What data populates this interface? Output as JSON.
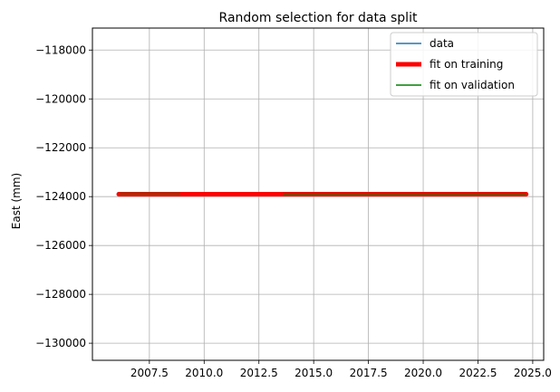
{
  "chart_data": {
    "type": "line",
    "title": "Random selection for data split",
    "xlabel": "",
    "ylabel": "East (mm)",
    "xlim": [
      2004.9,
      2025.5
    ],
    "ylim": [
      -130700,
      -117100
    ],
    "xticks": [
      2007.5,
      2010.0,
      2012.5,
      2015.0,
      2017.5,
      2020.0,
      2022.5,
      2025.0
    ],
    "xtick_labels": [
      "2007.5",
      "2010.0",
      "2012.5",
      "2015.0",
      "2017.5",
      "2020.0",
      "2022.5",
      "2025.0"
    ],
    "yticks": [
      -118000,
      -120000,
      -122000,
      -124000,
      -126000,
      -128000,
      -130000
    ],
    "ytick_labels": [
      "−118000",
      "−120000",
      "−122000",
      "−124000",
      "−126000",
      "−128000",
      "−130000"
    ],
    "grid": true,
    "legend_position": "top-right",
    "series": [
      {
        "name": "data",
        "color": "#1f77b4",
        "style": "line",
        "x": [
          2006.1,
          2007.0,
          2008.0,
          2009.0,
          2010.0,
          2011.0,
          2012.0,
          2013.0,
          2014.0,
          2015.0,
          2016.0,
          2017.0,
          2018.0,
          2019.0,
          2020.0,
          2021.0,
          2022.0,
          2023.0,
          2024.0,
          2024.7
        ],
        "y": [
          -123880,
          -123900,
          -123890,
          -123910,
          -123900,
          -123905,
          -123895,
          -123900,
          -123890,
          -123900,
          -123905,
          -123895,
          -123900,
          -123910,
          -123895,
          -123900,
          -123905,
          -123895,
          -123900,
          -123900
        ]
      },
      {
        "name": "fit on training",
        "color": "#ff0000",
        "style": "thick-line",
        "x": [
          2006.1,
          2024.7
        ],
        "y": [
          -123900,
          -123900
        ]
      },
      {
        "name": "fit on validation",
        "color": "#008000",
        "style": "line-segments",
        "segments": [
          {
            "x": [
              2006.1,
              2008.9
            ],
            "y": [
              -123870,
              -123870
            ]
          },
          {
            "x": [
              2013.6,
              2024.7
            ],
            "y": [
              -123880,
              -123880
            ]
          }
        ]
      }
    ]
  }
}
